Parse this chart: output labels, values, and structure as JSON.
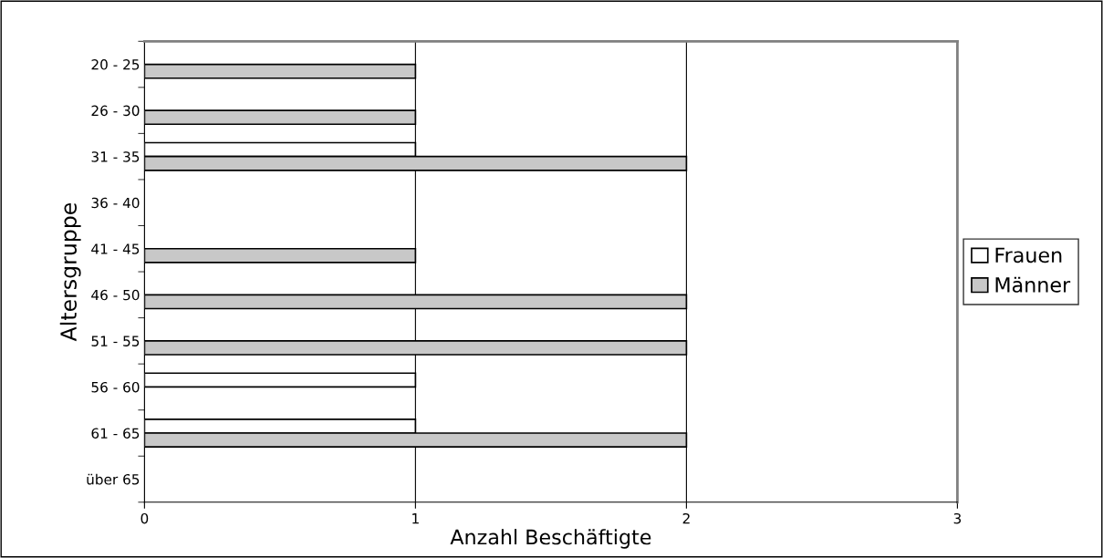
{
  "chart_data": {
    "type": "bar",
    "orientation": "horizontal",
    "categories": [
      "20 - 25",
      "26 - 30",
      "31 - 35",
      "36 - 40",
      "41 - 45",
      "46 - 50",
      "51 - 55",
      "56 - 60",
      "61 - 65",
      "über 65"
    ],
    "series": [
      {
        "name": "Frauen",
        "color": "#ffffff",
        "values": [
          0,
          0,
          1,
          0,
          0,
          0,
          0,
          1,
          1,
          0
        ]
      },
      {
        "name": "Männer",
        "color": "#c8c8c8",
        "values": [
          1,
          1,
          2,
          0,
          1,
          2,
          2,
          0,
          2,
          0
        ]
      }
    ],
    "xlim": [
      0,
      3
    ],
    "xticks": [
      0,
      1,
      2,
      3
    ],
    "xlabel": "Anzahl Beschäftigte",
    "ylabel": "Altersgruppe",
    "grid": "x",
    "legend": "right"
  }
}
